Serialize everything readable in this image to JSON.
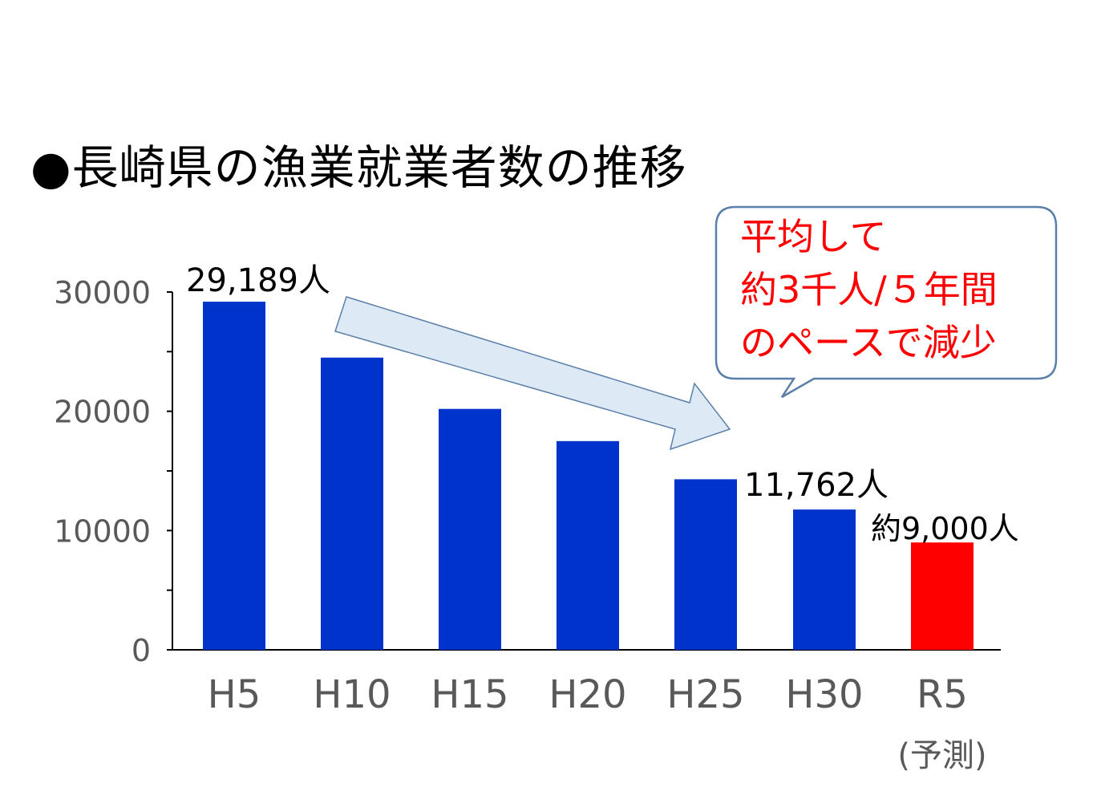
{
  "title": "●長崎県の漁業就業者数の推移",
  "chart_data": {
    "type": "bar",
    "categories": [
      "H5",
      "H10",
      "H15",
      "H20",
      "H25",
      "H30",
      "R5"
    ],
    "category_sublabels": [
      "",
      "",
      "",
      "",
      "",
      "",
      "(予測)"
    ],
    "values": [
      29189,
      24500,
      20200,
      17500,
      14300,
      11762,
      9000
    ],
    "bar_colors": [
      "#0033cc",
      "#0033cc",
      "#0033cc",
      "#0033cc",
      "#0033cc",
      "#0033cc",
      "#ff0000"
    ],
    "yticks": [
      "0",
      "10000",
      "20000",
      "30000"
    ],
    "ylim": [
      0,
      30000
    ],
    "data_labels": [
      {
        "category": "H5",
        "text": "29,189人"
      },
      {
        "category": "H30",
        "text": "11,762人"
      },
      {
        "category": "R5",
        "text": "約9,000人"
      }
    ],
    "grid": false
  },
  "annotation": {
    "lines": [
      "平均して",
      "約3千人/５年間",
      "のペースで減少"
    ],
    "color": "#ff0000"
  },
  "colors": {
    "bar": "#0033cc",
    "forecast_bar": "#ff0000",
    "arrow_fill": "#dde9f5",
    "arrow_stroke": "#5a7fa8",
    "callout_stroke": "#5a7fa8"
  }
}
